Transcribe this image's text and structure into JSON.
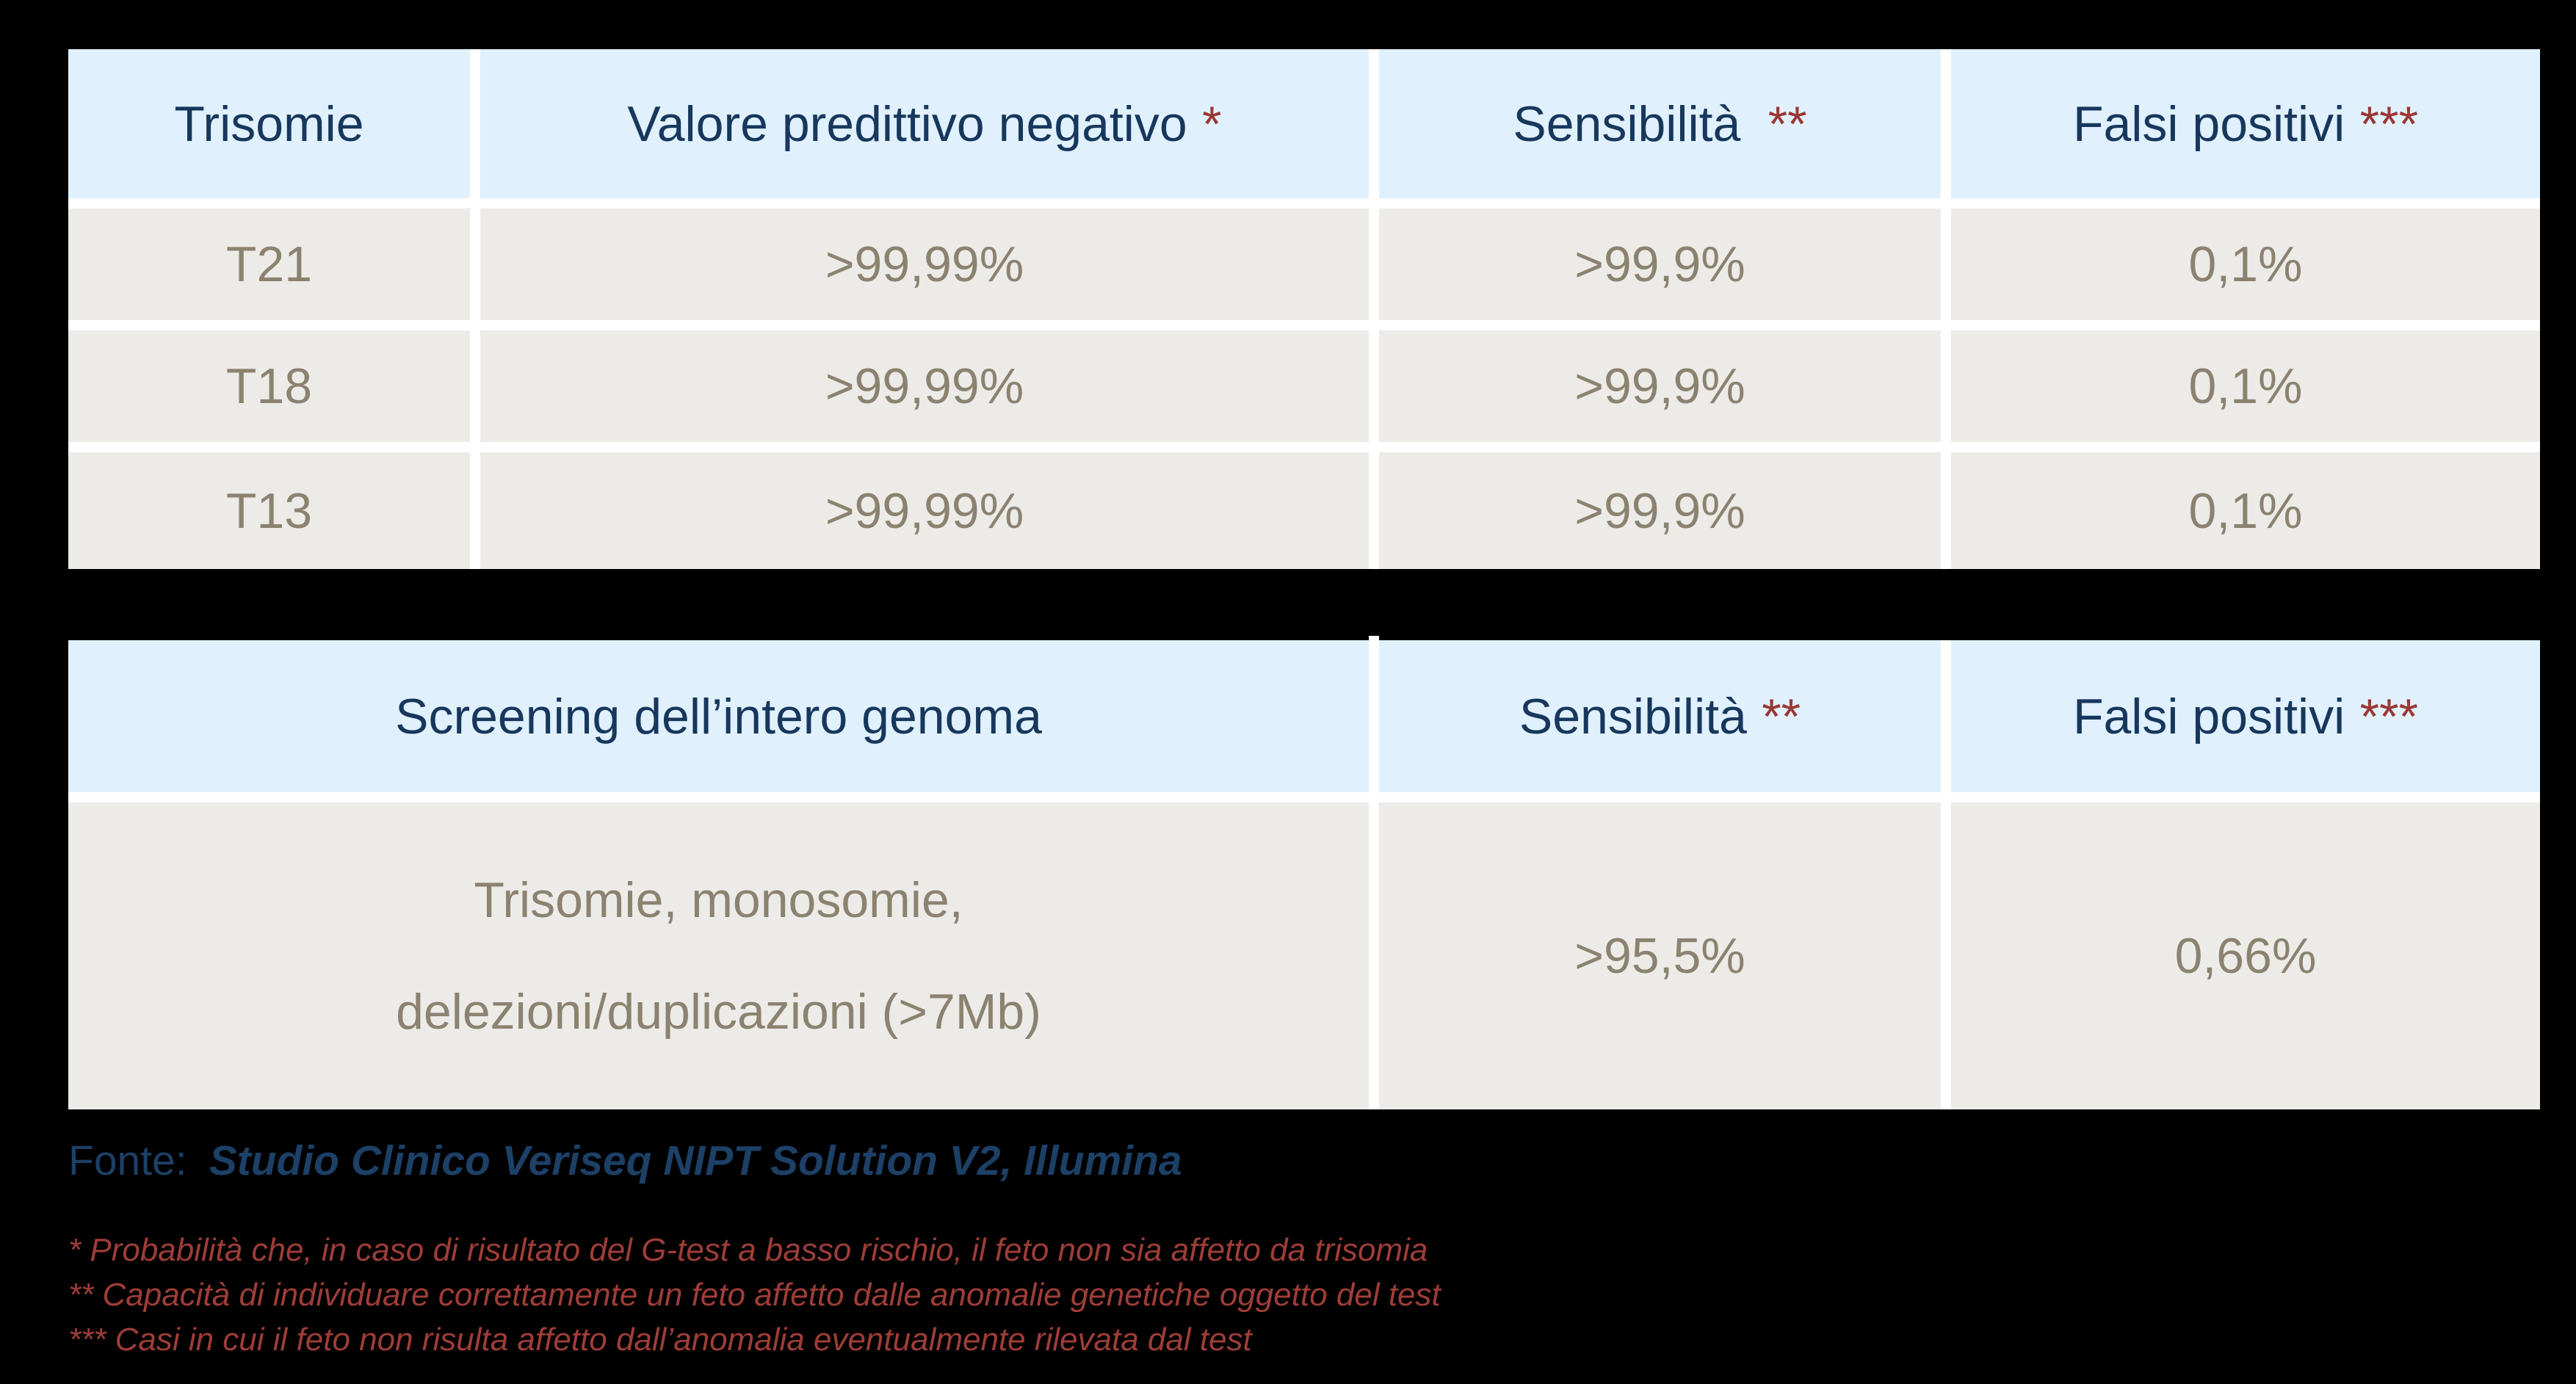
{
  "table1": {
    "headers": [
      {
        "label": "Trisomie",
        "mark": ""
      },
      {
        "label": "Valore predittivo negativo",
        "mark": "*"
      },
      {
        "label": "Sensibilità",
        "mark": "**"
      },
      {
        "label": "Falsi positivi",
        "mark": "***"
      }
    ],
    "rows": [
      {
        "trisomy": "T21",
        "npv": ">99,99%",
        "sensitivity": ">99,9%",
        "false_positives": "0,1%"
      },
      {
        "trisomy": "T18",
        "npv": ">99,99%",
        "sensitivity": ">99,9%",
        "false_positives": "0,1%"
      },
      {
        "trisomy": "T13",
        "npv": ">99,99%",
        "sensitivity": ">99,9%",
        "false_positives": "0,1%"
      }
    ]
  },
  "table2": {
    "headers": [
      {
        "label": "Screening dell’intero genoma",
        "mark": ""
      },
      {
        "label": "Sensibilità",
        "mark": "**"
      },
      {
        "label": "Falsi positivi",
        "mark": "***"
      }
    ],
    "row": {
      "screening": "Trisomie, monosomie,\ndelezioni/duplicazioni (>7Mb)",
      "sensitivity": ">95,5%",
      "false_positives": "0,66%"
    }
  },
  "source": {
    "label": "Fonte:",
    "value": "Studio Clinico Veriseq NIPT Solution V2, Illumina"
  },
  "footnotes": [
    "* Probabilità che, in caso di risultato del G-test a basso rischio, il feto non sia affetto da trisomia",
    "** Capacità di individuare correttamente un feto affetto dalle anomalie genetiche oggetto del test",
    "*** Casi in cui il feto non risulta affetto dall’anomalia eventualmente rilevata dal test"
  ],
  "colors": {
    "background": "#000000",
    "header_bg": "#e0f1fd",
    "header_text": "#17375d",
    "cell_bg": "#edebe8",
    "cell_text": "#8b8270",
    "asterisk": "#9a3734",
    "footnote_text": "#9e3d38",
    "source_text": "#1c4066",
    "separator": "#ffffff"
  }
}
